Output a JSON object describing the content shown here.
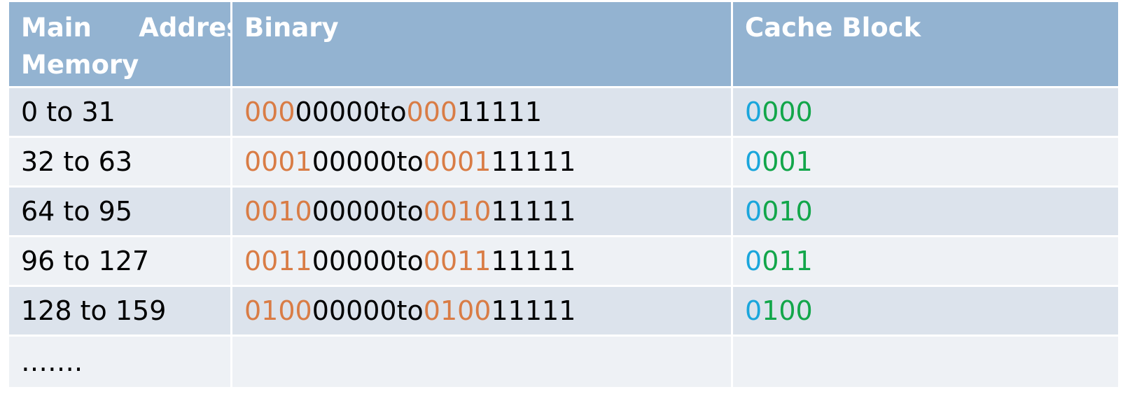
{
  "colors": {
    "header_bg": "#93b3d1",
    "row_odd_bg": "#dce3ec",
    "row_even_bg": "#eef1f5",
    "tag_orange": "#d97c45",
    "offset_black": "#000000",
    "set_blue": "#1aa6dc",
    "set_green": "#12a64a"
  },
  "header": {
    "col1_line1": "Main Memory",
    "col1_line2": "Addresses",
    "col2": "Binary",
    "col3": "Cache Block"
  },
  "rows": [
    {
      "range": "0 to 31",
      "bin_start_tag": "000",
      "bin_start_rest": "00000",
      "connector": " to ",
      "bin_end_tag": "000",
      "bin_end_rest": "11111",
      "block_blue": "0",
      "block_green": "000"
    },
    {
      "range": "32 to 63",
      "bin_start_tag": "0001",
      "bin_start_rest": "00000",
      "connector": " to ",
      "bin_end_tag": "0001",
      "bin_end_rest": "11111",
      "block_blue": "0",
      "block_green": "001"
    },
    {
      "range": "64 to 95",
      "bin_start_tag": "0010",
      "bin_start_rest": "00000",
      "connector": " to ",
      "bin_end_tag": "0010",
      "bin_end_rest": "11111",
      "block_blue": "0",
      "block_green": "010"
    },
    {
      "range": "96 to 127",
      "bin_start_tag": "0011",
      "bin_start_rest": "00000",
      "connector": " to ",
      "bin_end_tag": "0011",
      "bin_end_rest": "11111",
      "block_blue": "0",
      "block_green": "011"
    },
    {
      "range": "128 to 159",
      "bin_start_tag": "0100",
      "bin_start_rest": "00000",
      "connector": " to ",
      "bin_end_tag": "0100",
      "bin_end_rest": "11111",
      "block_blue": "0",
      "block_green": "100"
    }
  ],
  "last_row": {
    "ellipsis": "……."
  }
}
